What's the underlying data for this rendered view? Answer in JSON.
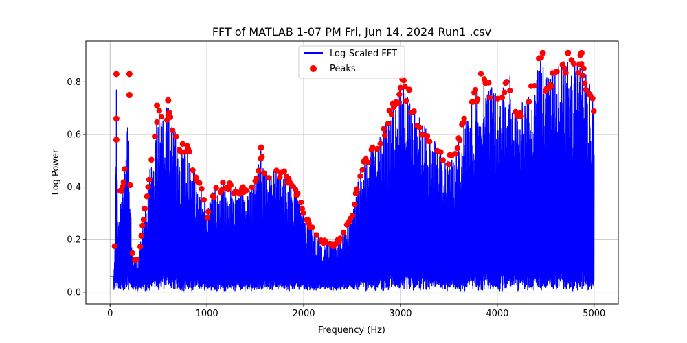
{
  "chart_data": {
    "type": "line",
    "title": "FFT of MATLAB 1-07 PM Fri, Jun 14, 2024 Run1 .csv",
    "xlabel": "Frequency (Hz)",
    "ylabel": "Log Power",
    "xlim": [
      -250,
      5250
    ],
    "ylim": [
      -0.045,
      0.955
    ],
    "xticks": [
      0,
      1000,
      2000,
      3000,
      4000,
      5000
    ],
    "xtick_labels": [
      "0",
      "1000",
      "2000",
      "3000",
      "4000",
      "5000"
    ],
    "yticks": [
      0.0,
      0.2,
      0.4,
      0.6,
      0.8
    ],
    "ytick_labels": [
      "0.0",
      "0.2",
      "0.4",
      "0.6",
      "0.8"
    ],
    "grid": true,
    "legend_position": "top-center",
    "series": [
      {
        "name": "Log-Scaled FFT",
        "style": "line",
        "color": "#0000ff",
        "envelope": {
          "x": [
            0,
            40,
            55,
            65,
            80,
            100,
            130,
            160,
            180,
            195,
            210,
            230,
            260,
            300,
            350,
            400,
            450,
            500,
            550,
            600,
            650,
            700,
            750,
            800,
            850,
            900,
            950,
            980,
            1000,
            1050,
            1100,
            1200,
            1300,
            1400,
            1500,
            1560,
            1600,
            1700,
            1800,
            1900,
            1950,
            2000,
            2100,
            2200,
            2300,
            2400,
            2500,
            2550,
            2600,
            2700,
            2800,
            2900,
            3000,
            3030,
            3100,
            3200,
            3300,
            3400,
            3450,
            3500,
            3550,
            3600,
            3700,
            3750,
            3800,
            3850,
            3900,
            4000,
            4100,
            4150,
            4200,
            4300,
            4400,
            4450,
            4500,
            4600,
            4700,
            4750,
            4800,
            4850,
            4900,
            4950,
            5000
          ],
          "y": [
            0.06,
            0.06,
            0.35,
            0.83,
            0.3,
            0.4,
            0.42,
            0.5,
            0.83,
            0.6,
            0.4,
            0.15,
            0.12,
            0.15,
            0.3,
            0.45,
            0.6,
            0.7,
            0.68,
            0.72,
            0.65,
            0.58,
            0.58,
            0.56,
            0.5,
            0.45,
            0.4,
            0.35,
            0.3,
            0.38,
            0.4,
            0.43,
            0.4,
            0.4,
            0.43,
            0.55,
            0.45,
            0.47,
            0.46,
            0.42,
            0.38,
            0.3,
            0.25,
            0.2,
            0.18,
            0.22,
            0.3,
            0.4,
            0.5,
            0.55,
            0.6,
            0.72,
            0.8,
            0.81,
            0.74,
            0.66,
            0.6,
            0.55,
            0.5,
            0.52,
            0.55,
            0.6,
            0.72,
            0.76,
            0.8,
            0.85,
            0.82,
            0.74,
            0.84,
            0.82,
            0.7,
            0.76,
            0.82,
            0.9,
            0.83,
            0.86,
            0.88,
            0.92,
            0.87,
            0.92,
            0.85,
            0.8,
            0.72
          ]
        }
      },
      {
        "name": "Peaks",
        "style": "scatter",
        "color": "#ff0000",
        "highlighted_peaks": {
          "x": [
            65,
            65,
            65,
            200,
            200,
            485,
            600,
            1560,
            3020,
            3090,
            4430,
            4470,
            4730,
            4870
          ],
          "y": [
            0.83,
            0.66,
            0.58,
            0.83,
            0.75,
            0.71,
            0.73,
            0.55,
            0.81,
            0.77,
            0.89,
            0.91,
            0.91,
            0.91
          ]
        }
      }
    ]
  }
}
